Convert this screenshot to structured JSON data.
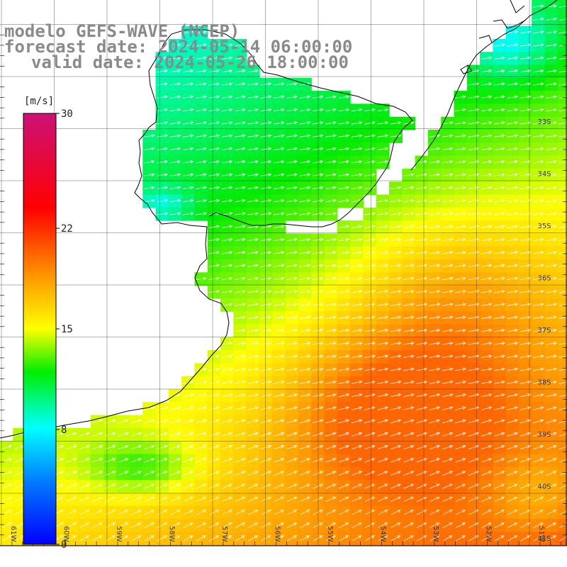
{
  "title": {
    "line1": "modelo GEFS-WAVE (NCEP)",
    "line2": "forecast date: 2024-05-14 06:00:00",
    "line3": "valid date: 2024-05-26 18:00:00"
  },
  "colorbar": {
    "units": "[m/s]",
    "min": 0,
    "max": 30,
    "ticks": [
      {
        "value": 30,
        "label": "30"
      },
      {
        "value": 22,
        "label": "22"
      },
      {
        "value": 15,
        "label": "15"
      },
      {
        "value": 8,
        "label": "8"
      },
      {
        "value": 0,
        "label": "0"
      }
    ],
    "colors": [
      "#0000ff",
      "#0077ff",
      "#00ffff",
      "#00ee00",
      "#ffff00",
      "#ff9900",
      "#ff0000",
      "#cc1177"
    ]
  },
  "map": {
    "lon_labels": [
      "61W",
      "60W",
      "59W",
      "58W",
      "57W",
      "56W",
      "55W",
      "54W",
      "53W",
      "52W",
      "51W"
    ],
    "lat_labels": [
      "33S",
      "34S",
      "35S",
      "36S",
      "37S",
      "38S",
      "39S",
      "40S",
      "41S"
    ],
    "wind_direction": "towards east-northeast",
    "colors": {
      "coast": "#000000",
      "grid": "#000000",
      "vector": "#ffffff"
    }
  }
}
